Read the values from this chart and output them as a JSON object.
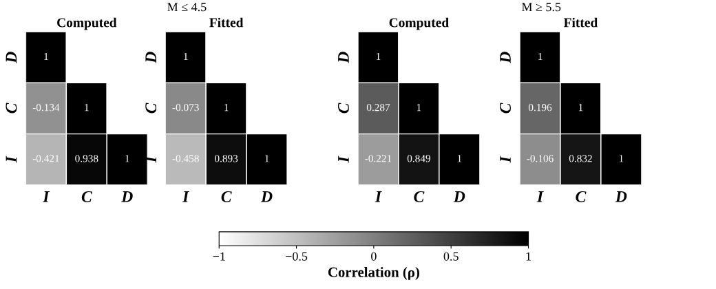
{
  "chart_data": [
    {
      "type": "heatmap",
      "title": "Computed",
      "annotations": [
        "M ≤ 4.5"
      ],
      "categories": [
        "I",
        "C",
        "D"
      ],
      "y_categories": [
        "D",
        "C",
        "I"
      ],
      "data_labels": true,
      "cells": [
        [
          1,
          null,
          null
        ],
        [
          -0.134,
          1,
          null
        ],
        [
          -0.421,
          0.938,
          1
        ]
      ]
    },
    {
      "type": "heatmap",
      "title": "Fitted",
      "categories": [
        "I",
        "C",
        "D"
      ],
      "y_categories": [
        "D",
        "C",
        "I"
      ],
      "data_labels": true,
      "cells": [
        [
          1,
          null,
          null
        ],
        [
          -0.073,
          1,
          null
        ],
        [
          -0.458,
          0.893,
          1
        ]
      ]
    },
    {
      "type": "heatmap",
      "title": "Computed",
      "annotations": [
        "M ≥ 5.5"
      ],
      "categories": [
        "I",
        "C",
        "D"
      ],
      "y_categories": [
        "D",
        "C",
        "I"
      ],
      "data_labels": true,
      "cells": [
        [
          1,
          null,
          null
        ],
        [
          0.287,
          1,
          null
        ],
        [
          -0.221,
          0.849,
          1
        ]
      ]
    },
    {
      "type": "heatmap",
      "title": "Fitted",
      "categories": [
        "I",
        "C",
        "D"
      ],
      "y_categories": [
        "D",
        "C",
        "I"
      ],
      "data_labels": true,
      "clim": [
        -1,
        1
      ],
      "clabel": "Correlation (ρ)",
      "cticks": [
        {
          "value": -1,
          "label": "−1"
        },
        {
          "value": -0.5,
          "label": "−0.5"
        },
        0,
        0.5,
        1
      ],
      "cells": [
        [
          1,
          null,
          null
        ],
        [
          0.196,
          1,
          null
        ],
        [
          -0.106,
          0.832,
          1
        ]
      ]
    }
  ]
}
